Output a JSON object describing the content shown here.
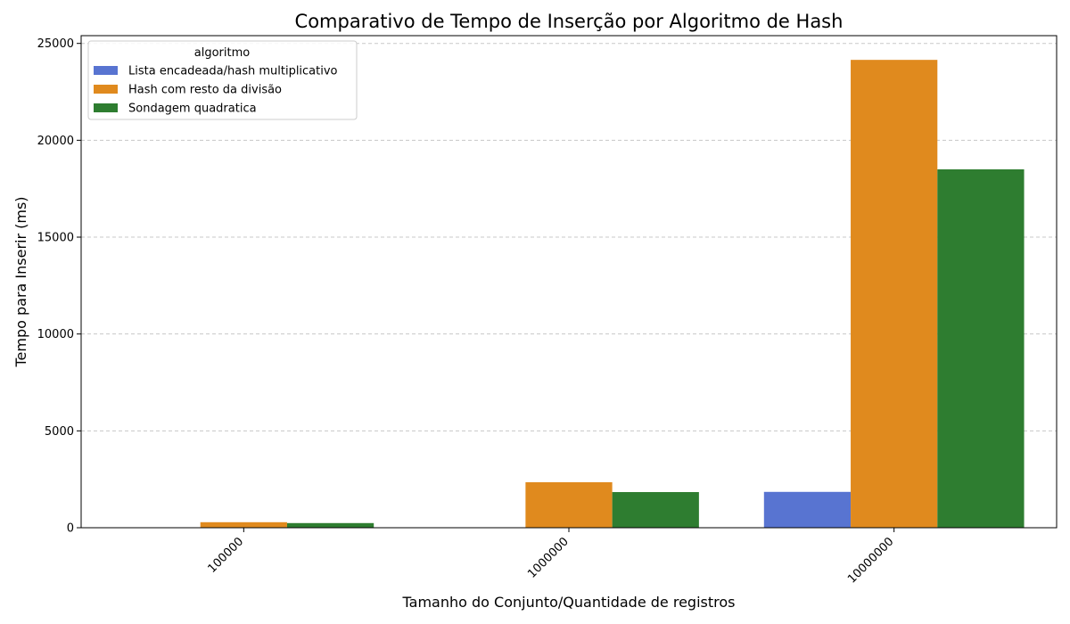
{
  "chart_data": {
    "type": "bar",
    "title": "Comparativo de Tempo de Inserção por Algoritmo de Hash",
    "xlabel": "Tamanho do Conjunto/Quantidade de registros",
    "ylabel": "Tempo para Inserir (ms)",
    "categories": [
      "100000",
      "1000000",
      "10000000"
    ],
    "ylim": [
      0,
      25400
    ],
    "yticks": [
      0,
      5000,
      10000,
      15000,
      20000,
      25000
    ],
    "ytick_labels": [
      "0",
      "5000",
      "10000",
      "15000",
      "20000",
      "25000"
    ],
    "grid": "y-dashed",
    "legend": {
      "title": "algoritmo",
      "position": "top-left"
    },
    "series": [
      {
        "name": "Lista encadeada/hash multiplicativo",
        "color": "#5874d1",
        "values": [
          6,
          21,
          1850
        ]
      },
      {
        "name": "Hash com resto da divisão",
        "color": "#e08a1e",
        "values": [
          285,
          2350,
          24150
        ]
      },
      {
        "name": "Sondagem quadratica",
        "color": "#2e7d30",
        "values": [
          240,
          1840,
          18500
        ]
      }
    ]
  }
}
